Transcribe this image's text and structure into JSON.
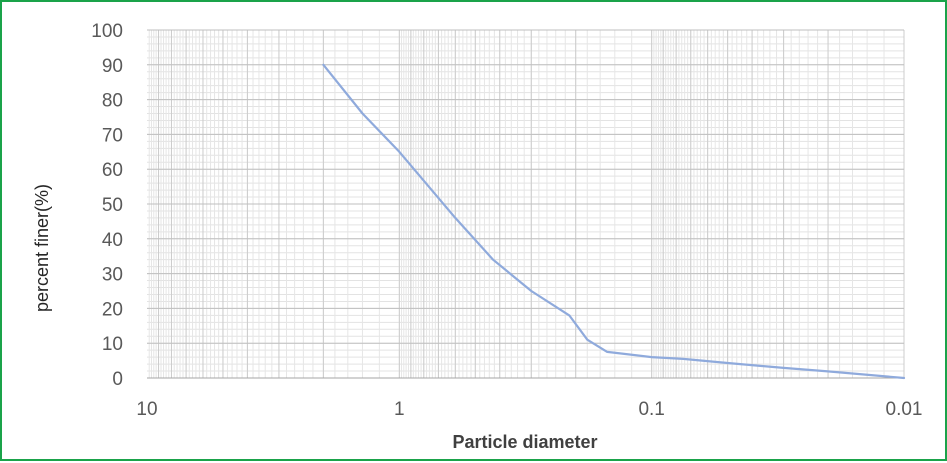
{
  "chart_data": {
    "type": "line",
    "title": "",
    "xlabel": "Particle diameter",
    "ylabel": "percent finer(%)",
    "x_scale": "log",
    "x_reversed": true,
    "xlim": [
      10,
      0.01
    ],
    "ylim": [
      0,
      100
    ],
    "x_ticks": [
      "10",
      "1",
      "0.1",
      "0.01"
    ],
    "y_ticks": [
      "0",
      "10",
      "20",
      "30",
      "40",
      "50",
      "60",
      "70",
      "80",
      "90",
      "100"
    ],
    "grid": true,
    "legend": "none",
    "series": [
      {
        "color": "#8faadc",
        "x": [
          2,
          1.4,
          1,
          0.6,
          0.425,
          0.3,
          0.212,
          0.18,
          0.15,
          0.1,
          0.075,
          0.05,
          0.03,
          0.02,
          0.01
        ],
        "y": [
          90,
          76,
          65,
          46,
          34,
          25,
          18,
          11,
          7.5,
          6,
          5.5,
          4.3,
          2.9,
          1.9,
          0
        ]
      }
    ]
  }
}
